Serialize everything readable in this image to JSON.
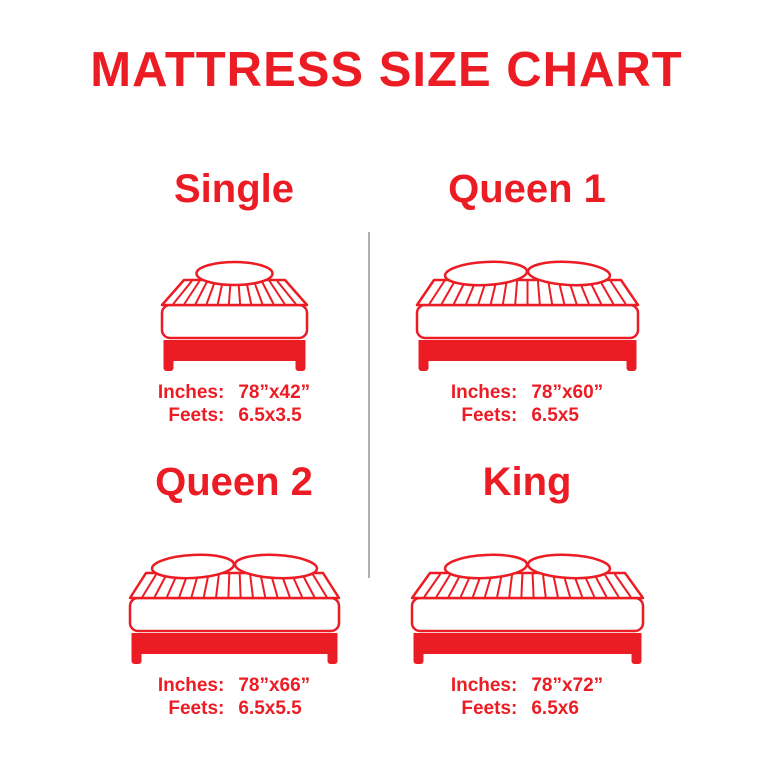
{
  "page": {
    "title": "MATTRESS SIZE CHART"
  },
  "colors": {
    "red": "#ec1c24",
    "divider": "#b0b0b0"
  },
  "labels": {
    "inches": "Inches:",
    "feet": "Feets:"
  },
  "sections": [
    {
      "id": "single",
      "name": "Single",
      "inches": "78”x42”",
      "feet": "6.5x3.5",
      "pillows": 1
    },
    {
      "id": "queen-1",
      "name": "Queen 1",
      "inches": "78”x60”",
      "feet": "6.5x5",
      "pillows": 2
    },
    {
      "id": "queen-2",
      "name": "Queen 2",
      "inches": "78”x66”",
      "feet": "6.5x5.5",
      "pillows": 2
    },
    {
      "id": "king",
      "name": "King",
      "inches": "78”x72”",
      "feet": "6.5x6",
      "pillows": 2
    }
  ]
}
